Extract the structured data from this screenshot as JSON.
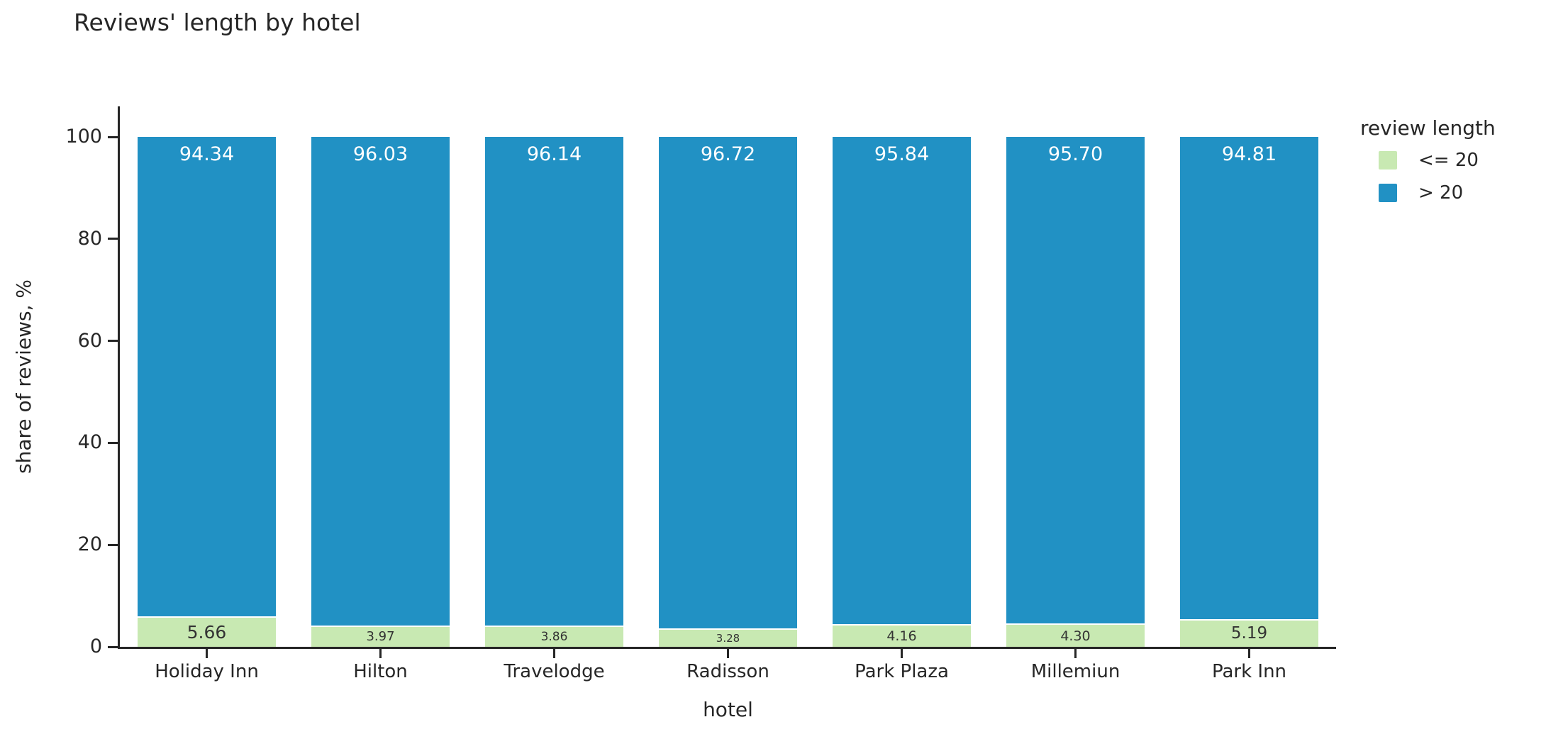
{
  "chart_data": {
    "type": "bar",
    "stacked": true,
    "title": "Reviews' length by hotel",
    "xlabel": "hotel",
    "ylabel": "share of reviews, %",
    "ylim": [
      0,
      100
    ],
    "yticks": [
      0,
      20,
      40,
      60,
      80,
      100
    ],
    "grid": false,
    "categories": [
      "Holiday Inn",
      "Hilton",
      "Travelodge",
      "Radisson",
      "Park Plaza",
      "Millemiun",
      "Park Inn"
    ],
    "legend": {
      "title": "review length",
      "position": "right"
    },
    "series": [
      {
        "name": "<= 20",
        "color": "#c8e9b2",
        "text_color": "#333333",
        "values": [
          5.66,
          3.97,
          3.86,
          3.28,
          4.16,
          4.3,
          5.19
        ],
        "labels": [
          "5.66",
          "3.97",
          "3.86",
          "3.28",
          "4.16",
          "4.30",
          "5.19"
        ]
      },
      {
        "name": "> 20",
        "color": "#2191c4",
        "text_color": "#ffffff",
        "values": [
          94.34,
          96.03,
          96.14,
          96.72,
          95.84,
          95.7,
          94.81
        ],
        "labels": [
          "94.34",
          "96.03",
          "96.14",
          "96.72",
          "95.84",
          "95.70",
          "94.81"
        ]
      }
    ]
  }
}
